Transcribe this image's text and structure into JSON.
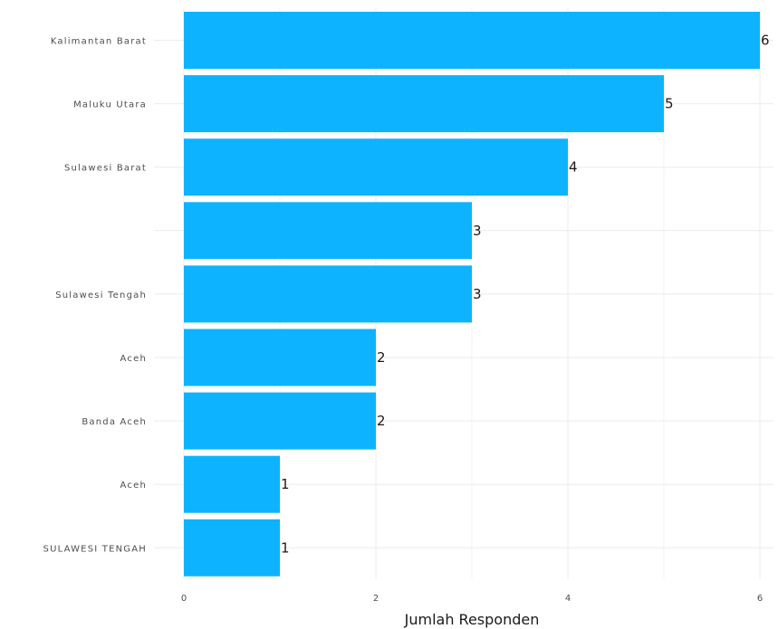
{
  "chart_data": {
    "type": "bar",
    "orientation": "horizontal",
    "categories": [
      "Kalimantan Barat",
      "Maluku Utara",
      "Sulawesi Barat",
      "",
      "Sulawesi Tengah",
      "Aceh",
      "Banda Aceh",
      "Aceh",
      "SULAWESI TENGAH"
    ],
    "values": [
      6,
      5,
      4,
      3,
      3,
      2,
      2,
      1,
      1
    ],
    "data_labels": [
      "6",
      "5",
      "4",
      "3",
      "3",
      "2",
      "2",
      "1",
      "1"
    ],
    "title": "",
    "xlabel": "Jumlah Responden",
    "ylabel": "",
    "xlim": [
      0,
      6
    ],
    "x_ticks": [
      0,
      2,
      4,
      6
    ],
    "x_tick_labels": [
      "0",
      "2",
      "4",
      "6"
    ],
    "grid": true,
    "legend": "none",
    "bar_color": "#0db3ff"
  }
}
